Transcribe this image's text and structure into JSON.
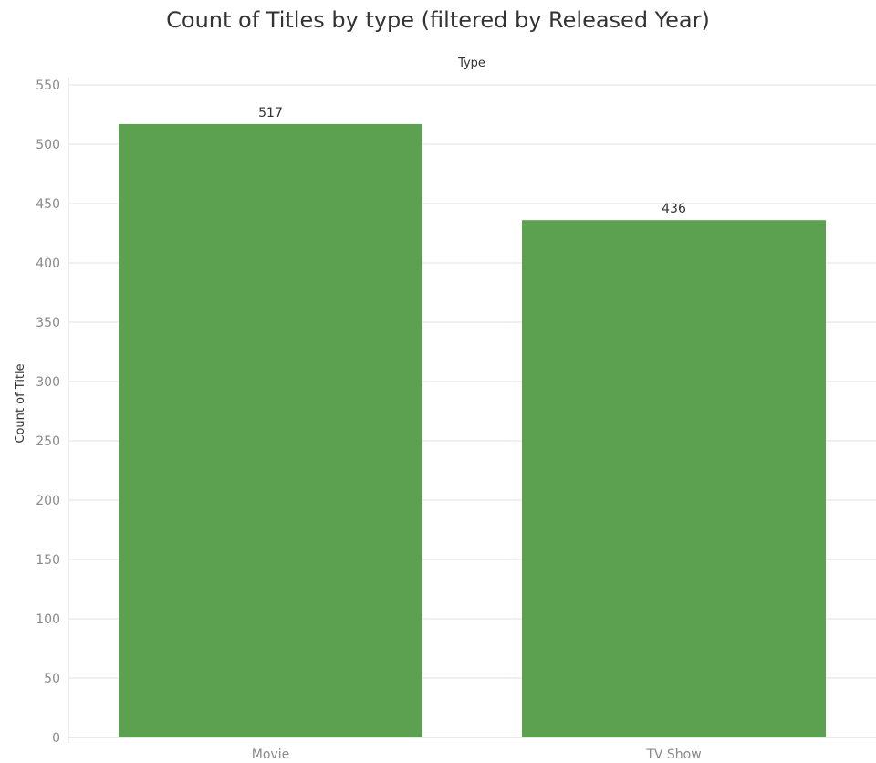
{
  "chart_data": {
    "type": "bar",
    "title": "Count of Titles by type (filtered by Released Year)",
    "header_label": "Type",
    "xlabel": "",
    "ylabel": "Count of Title",
    "categories": [
      "Movie",
      "TV Show"
    ],
    "values": [
      517,
      436
    ],
    "data_labels": [
      "517",
      "436"
    ],
    "ylim": [
      0,
      550
    ],
    "yticks": [
      0,
      50,
      100,
      150,
      200,
      250,
      300,
      350,
      400,
      450,
      500,
      550
    ],
    "grid": true,
    "bar_color": "#5ba150"
  }
}
